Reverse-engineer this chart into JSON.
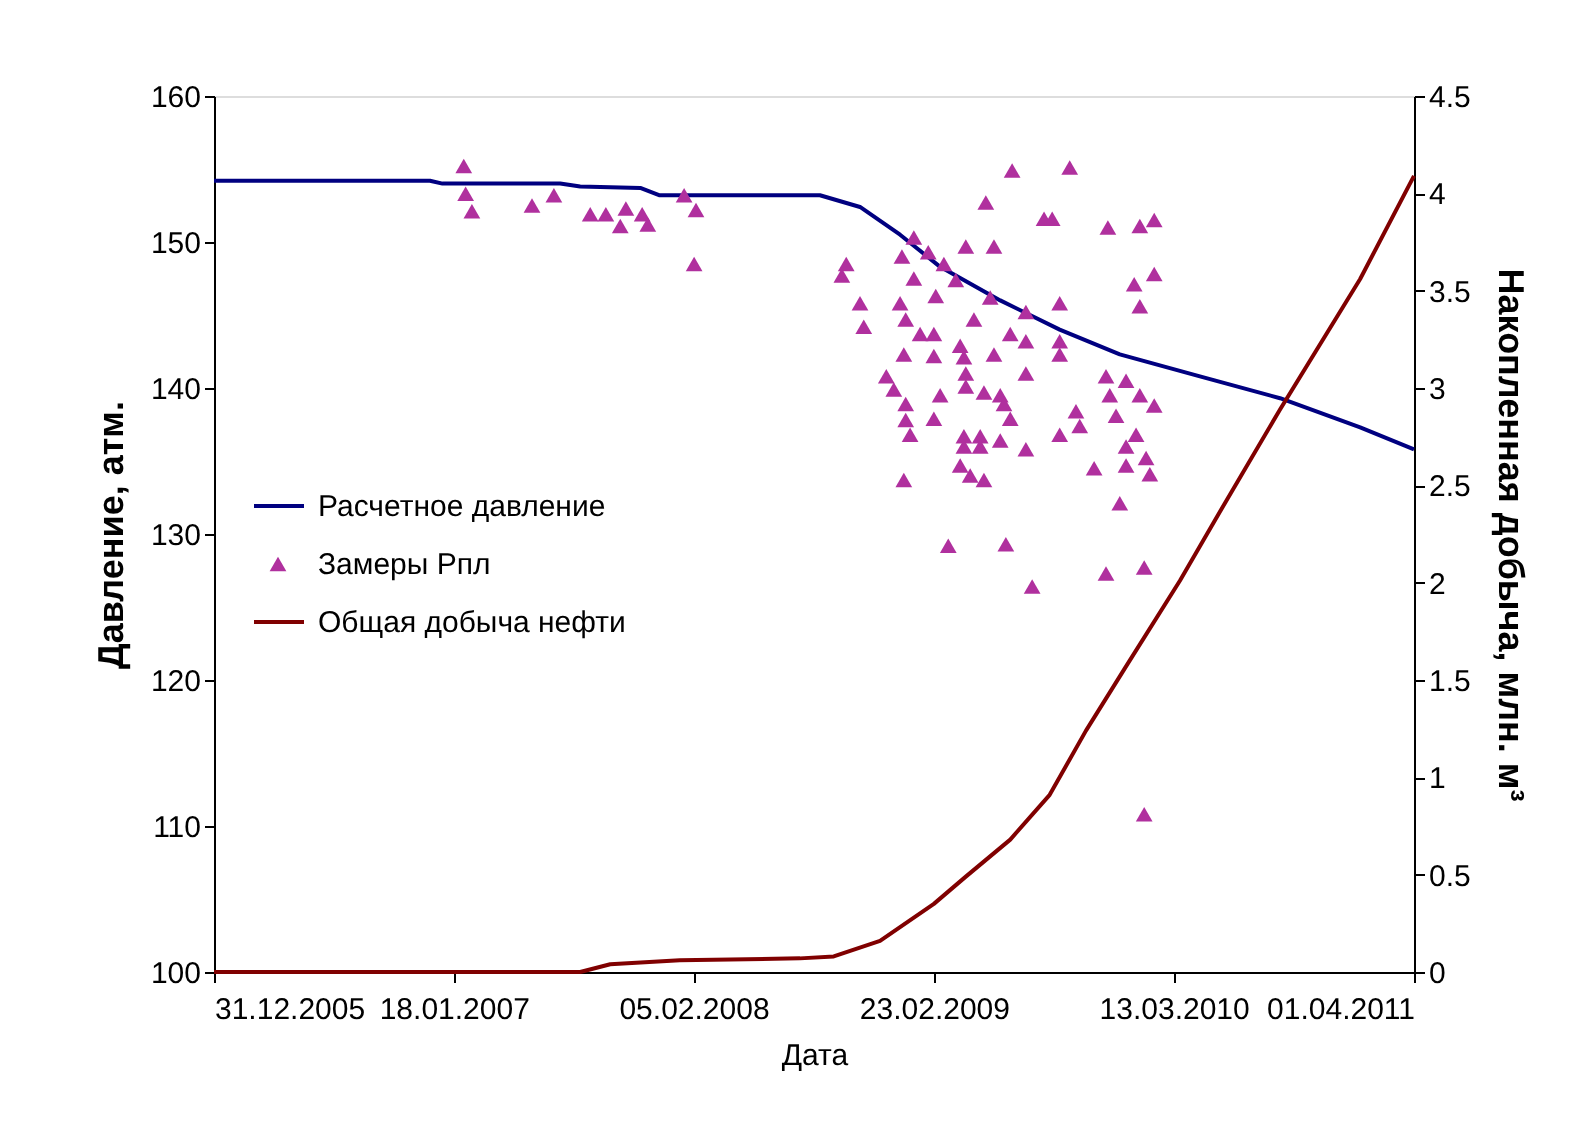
{
  "chart_data": {
    "type": "line",
    "xlabel": "Дата",
    "ylabel": "Давление, атм.",
    "y2label": "Накопленная добыча, млн. м³",
    "xlim": [
      "2005-12-31",
      "2011-04-01"
    ],
    "xticks": [
      {
        "value": "2005-12-31",
        "label": "31.12.2005"
      },
      {
        "value": "2007-01-18",
        "label": "18.01.2007"
      },
      {
        "value": "2008-02-05",
        "label": "05.02.2008"
      },
      {
        "value": "2009-02-23",
        "label": "23.02.2009"
      },
      {
        "value": "2010-03-13",
        "label": "13.03.2010"
      },
      {
        "value": "2011-04-01",
        "label": "01.04.2011"
      }
    ],
    "ylim": [
      100,
      160
    ],
    "yticks": [
      100,
      110,
      120,
      130,
      140,
      150,
      160
    ],
    "y2lim": [
      0,
      4.5
    ],
    "y2ticks": [
      0,
      0.5,
      1,
      1.5,
      2,
      2.5,
      3,
      3.5,
      4,
      4.5
    ],
    "grid": false,
    "legend": "left",
    "series": [
      {
        "name": "Расчетное давление",
        "color": "#000080",
        "x": [
          "2005-12-31",
          "2006-12-11",
          "2006-12-31",
          "2007-07-07",
          "2007-08-08",
          "2007-11-12",
          "2007-12-13",
          "2008-08-25",
          "2008-10-28",
          "2008-12-31",
          "2009-03-05",
          "2009-06-09",
          "2009-09-12",
          "2009-12-17",
          "2010-04-24",
          "2010-08-30",
          "2011-01-05",
          "2011-04-01"
        ],
        "values": [
          154.2,
          154.2,
          154.0,
          154.0,
          153.8,
          153.7,
          153.2,
          153.2,
          152.4,
          150.5,
          148.3,
          146.0,
          144.0,
          142.3,
          140.8,
          139.3,
          137.3,
          135.8
        ]
      },
      {
        "name": "Замеры Рпл",
        "type": "scatter",
        "marker": "triangle",
        "color": "#b0309e",
        "x": [
          "2007-02-03",
          "2007-02-06",
          "2007-02-16",
          "2007-05-23",
          "2007-06-27",
          "2007-08-24",
          "2007-09-18",
          "2007-10-20",
          "2007-10-11",
          "2007-11-15",
          "2007-11-24",
          "2008-01-21",
          "2008-02-09",
          "2008-02-06",
          "2009-06-28",
          "2009-09-28",
          "2009-05-17",
          "2009-08-18",
          "2009-08-31",
          "2009-11-28",
          "2010-01-18",
          "2010-02-10",
          "2009-01-22",
          "2009-01-03",
          "2009-04-15",
          "2009-05-30",
          "2008-10-06",
          "2008-09-29",
          "2009-02-14",
          "2009-03-11",
          "2009-01-22",
          "2009-03-30",
          "2010-01-09",
          "2010-02-10",
          "2010-01-18",
          "2008-10-28",
          "2008-11-03",
          "2008-12-31",
          "2009-01-09",
          "2009-02-26",
          "2009-05-24",
          "2009-07-20",
          "2009-09-12",
          "2009-04-28",
          "2009-02-01",
          "2009-02-23",
          "2009-06-25",
          "2009-07-20",
          "2009-09-12",
          "2009-09-12",
          "2009-01-06",
          "2009-02-23",
          "2009-04-06",
          "2009-05-30",
          "2009-04-12",
          "2009-07-20",
          "2008-12-09",
          "2008-12-21",
          "2009-03-05",
          "2009-04-15",
          "2009-05-14",
          "2009-06-09",
          "2009-04-15",
          "2009-11-25",
          "2009-12-27",
          "2009-12-01",
          "2010-01-18",
          "2010-02-10",
          "2009-01-09",
          "2009-02-23",
          "2009-06-15",
          "2009-06-25",
          "2009-10-08",
          "2009-10-14",
          "2009-12-11",
          "2010-01-12",
          "2009-01-09",
          "2009-01-16",
          "2009-04-12",
          "2009-05-08",
          "2009-06-09",
          "2009-09-12",
          "2009-04-12",
          "2009-05-08",
          "2009-07-20",
          "2009-12-27",
          "2010-01-28",
          "2009-12-27",
          "2010-02-03",
          "2009-11-06",
          "2009-04-06",
          "2009-04-22",
          "2009-05-14",
          "2009-01-06",
          "2009-12-17",
          "2009-03-18",
          "2009-06-18",
          "2009-07-30",
          "2009-11-25",
          "2010-01-25",
          "2010-01-25"
        ],
        "values": [
          155.2,
          153.3,
          152.1,
          152.5,
          153.2,
          151.9,
          151.9,
          152.3,
          151.1,
          151.9,
          151.2,
          153.2,
          152.2,
          148.5,
          154.9,
          155.1,
          152.7,
          151.6,
          151.6,
          151.0,
          151.1,
          151.5,
          150.3,
          149.0,
          149.7,
          149.7,
          148.5,
          147.7,
          149.3,
          148.5,
          147.5,
          147.4,
          147.1,
          147.8,
          145.6,
          145.8,
          144.2,
          145.8,
          144.7,
          146.3,
          146.2,
          145.2,
          145.8,
          144.7,
          143.7,
          143.7,
          143.7,
          143.2,
          143.2,
          142.3,
          142.3,
          142.2,
          142.9,
          142.3,
          142.1,
          141.0,
          140.8,
          139.9,
          139.5,
          140.1,
          139.7,
          139.5,
          141.0,
          140.8,
          140.5,
          139.5,
          139.5,
          138.8,
          138.9,
          137.9,
          138.9,
          137.9,
          138.4,
          137.4,
          138.1,
          136.8,
          137.8,
          136.8,
          136.7,
          136.7,
          136.4,
          136.8,
          136.0,
          136.0,
          135.8,
          136.0,
          135.2,
          134.7,
          134.1,
          134.5,
          134.7,
          134.0,
          133.7,
          133.7,
          132.1,
          129.2,
          129.3,
          126.4,
          127.3,
          127.7,
          110.8
        ]
      },
      {
        "name": "Общая добыча нефти",
        "axis": "y2",
        "color": "#800000",
        "x": [
          "2005-12-31",
          "2007-08-08",
          "2007-09-25",
          "2008-01-14",
          "2008-07-24",
          "2008-09-16",
          "2008-11-29",
          "2009-02-23",
          "2009-04-15",
          "2009-06-25",
          "2009-08-27",
          "2009-10-24",
          "2009-12-27",
          "2010-03-23",
          "2010-06-05",
          "2010-08-30",
          "2011-01-05",
          "2011-04-01"
        ],
        "values": [
          0,
          0,
          0.04,
          0.06,
          0.07,
          0.08,
          0.16,
          0.35,
          0.49,
          0.68,
          0.91,
          1.24,
          1.57,
          2.01,
          2.42,
          2.89,
          3.56,
          4.09
        ]
      }
    ]
  }
}
